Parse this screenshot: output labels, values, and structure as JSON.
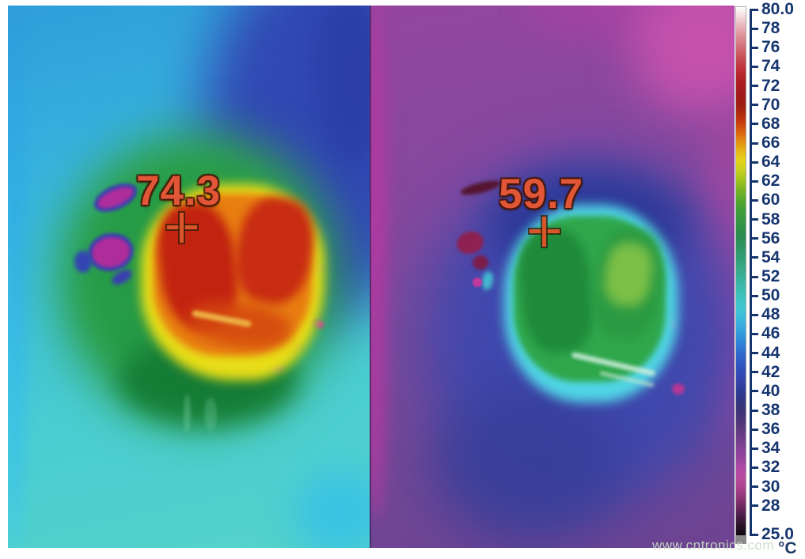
{
  "images": {
    "left": {
      "description": "thermal image of powered component, hotter run",
      "reading": "74.3",
      "marker": "+"
    },
    "right": {
      "description": "thermal image of powered component, cooler run",
      "reading": "59.7",
      "marker": "+"
    }
  },
  "scale": {
    "unit": "°C",
    "max": 80.0,
    "min": 25.0,
    "ticks": [
      {
        "label": "80.0",
        "value": 80
      },
      {
        "label": "78",
        "value": 78
      },
      {
        "label": "76",
        "value": 76
      },
      {
        "label": "74",
        "value": 74
      },
      {
        "label": "72",
        "value": 72
      },
      {
        "label": "70",
        "value": 70
      },
      {
        "label": "68",
        "value": 68
      },
      {
        "label": "66",
        "value": 66
      },
      {
        "label": "64",
        "value": 64
      },
      {
        "label": "62",
        "value": 62
      },
      {
        "label": "60",
        "value": 60
      },
      {
        "label": "58",
        "value": 58
      },
      {
        "label": "56",
        "value": 56
      },
      {
        "label": "54",
        "value": 54
      },
      {
        "label": "52",
        "value": 52
      },
      {
        "label": "50",
        "value": 50
      },
      {
        "label": "48",
        "value": 48
      },
      {
        "label": "46",
        "value": 46
      },
      {
        "label": "44",
        "value": 44
      },
      {
        "label": "42",
        "value": 42
      },
      {
        "label": "40",
        "value": 40
      },
      {
        "label": "38",
        "value": 38
      },
      {
        "label": "36",
        "value": 36
      },
      {
        "label": "34",
        "value": 34
      },
      {
        "label": "32",
        "value": 32
      },
      {
        "label": "30",
        "value": 30
      },
      {
        "label": "28",
        "value": 28
      },
      {
        "label": "25.0",
        "value": 25
      }
    ]
  },
  "watermark": {
    "text": "www.cntronics.com"
  },
  "colors": {
    "tick_label": "#16356f",
    "reading_text": "#e25638",
    "reading_outline": "#431505",
    "crosshair": "#d8562a",
    "colorbar_border": "#a8a8a8",
    "colorbar_top": "#ffffff",
    "colorbar_bottom": "#0d080d"
  }
}
